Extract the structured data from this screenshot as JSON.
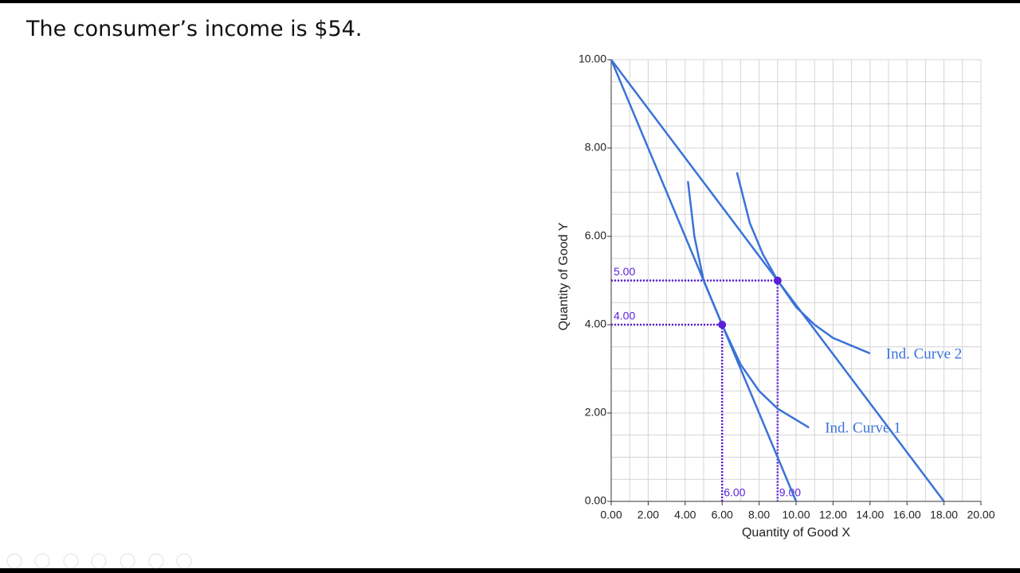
{
  "slide": {
    "text": "The consumer’s income is $54."
  },
  "chart_data": {
    "type": "line",
    "xlabel": "Quantity of Good X",
    "ylabel": "Quantity of Good Y",
    "xlim": [
      0,
      20
    ],
    "ylim": [
      0,
      10
    ],
    "xticks": [
      {
        "value": 0,
        "label": "0.00"
      },
      {
        "value": 2,
        "label": "2.00"
      },
      {
        "value": 4,
        "label": "4.00"
      },
      {
        "value": 6,
        "label": "6.00"
      },
      {
        "value": 8,
        "label": "8.00"
      },
      {
        "value": 10,
        "label": "10.00"
      },
      {
        "value": 12,
        "label": "12.00"
      },
      {
        "value": 14,
        "label": "14.00"
      },
      {
        "value": 16,
        "label": "16.00"
      },
      {
        "value": 18,
        "label": "18.00"
      },
      {
        "value": 20,
        "label": "20.00"
      }
    ],
    "yticks": [
      {
        "value": 0,
        "label": "0.00"
      },
      {
        "value": 2,
        "label": "2.00"
      },
      {
        "value": 4,
        "label": "4.00"
      },
      {
        "value": 6,
        "label": "6.00"
      },
      {
        "value": 8,
        "label": "8.00"
      },
      {
        "value": 10,
        "label": "10.00"
      }
    ],
    "grid": true,
    "xgrid": [
      0,
      1,
      2,
      3,
      4,
      5,
      6,
      7,
      8,
      9,
      10,
      11,
      12,
      13,
      14,
      15,
      16,
      17,
      18,
      19,
      20
    ],
    "ygrid": [
      0,
      0.5,
      1,
      1.5,
      2,
      2.5,
      3,
      3.5,
      4,
      4.5,
      5,
      5.5,
      6,
      6.5,
      7,
      7.5,
      8,
      8.5,
      9,
      9.5,
      10
    ],
    "color": "#3a72d8",
    "series": [
      {
        "x": [
          0,
          10
        ],
        "values": [
          10,
          0
        ]
      },
      {
        "x": [
          0,
          18
        ],
        "values": [
          10,
          0
        ]
      },
      {
        "name": "Ind. Curve 1",
        "x": [
          4.15,
          4.5,
          5,
          6,
          7,
          8,
          9,
          10.7
        ],
        "values": [
          7.25,
          6.0,
          5.0,
          4.0,
          3.1,
          2.5,
          2.1,
          1.67
        ]
      },
      {
        "name": "Ind. Curve 2",
        "x": [
          6.8,
          7.5,
          8.2,
          9,
          10,
          11,
          12,
          14
        ],
        "values": [
          7.45,
          6.3,
          5.6,
          5.0,
          4.4,
          4.0,
          3.7,
          3.35
        ]
      }
    ],
    "guides": [
      {
        "x": 6,
        "y": 4,
        "xlabel": "6.00",
        "ylabel": "4.00"
      },
      {
        "x": 9,
        "y": 5,
        "xlabel": "9.00",
        "ylabel": "5.00"
      }
    ],
    "guide_color": "#5a1fd8"
  }
}
